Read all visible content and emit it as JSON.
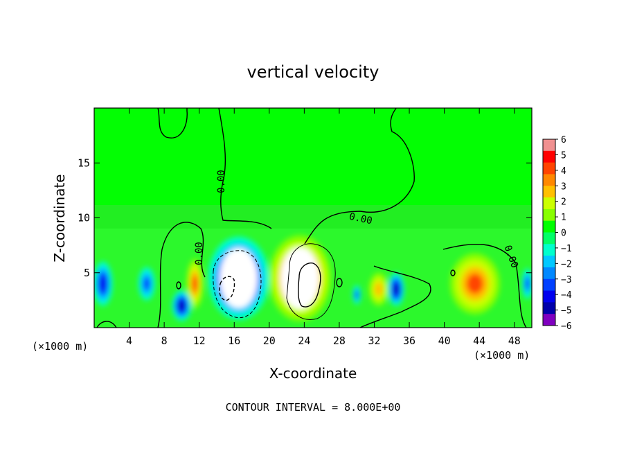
{
  "chart_data": {
    "type": "heatmap",
    "title": "vertical velocity",
    "xlabel": "X-coordinate",
    "ylabel": "Z-coordinate",
    "x_unit_left": "(×1000 m)",
    "x_unit_right": "(×1000 m)",
    "xlim": [
      0,
      50
    ],
    "ylim": [
      0,
      20
    ],
    "x_ticks": [
      4,
      8,
      12,
      16,
      20,
      24,
      28,
      32,
      36,
      40,
      44,
      48
    ],
    "y_ticks": [
      5,
      10,
      15
    ],
    "footer": "CONTOUR INTERVAL = 8.000E+00",
    "contour_labels": [
      "0.00",
      "0.00",
      "0.00",
      "0.00"
    ],
    "colorbar": {
      "labels": [
        "6",
        "5",
        "4",
        "3",
        "2",
        "1",
        "0",
        "−1",
        "−2",
        "−3",
        "−4",
        "−5",
        "−6"
      ],
      "range": [
        -6,
        6
      ],
      "colors": [
        "#f09090",
        "#ff0000",
        "#ff4400",
        "#ff8800",
        "#ffc000",
        "#ccff00",
        "#88ff00",
        "#00ff00",
        "#00ff66",
        "#00ffcc",
        "#00c8ff",
        "#0088ff",
        "#0040ff",
        "#0000ee",
        "#0000aa",
        "#8000c0"
      ]
    },
    "features": [
      {
        "name": "updraft-core",
        "x": 23.5,
        "z": 4.5,
        "value": 6
      },
      {
        "name": "downdraft-core",
        "x": 16.5,
        "z": 4.5,
        "value": -6
      },
      {
        "name": "updraft-cell",
        "x": 11.5,
        "z": 4.0,
        "value": 4
      },
      {
        "name": "downdraft-cell",
        "x": 10.0,
        "z": 2.0,
        "value": -5
      },
      {
        "name": "downdraft-left",
        "x": 1.0,
        "z": 4.0,
        "value": -4
      },
      {
        "name": "downdraft-cell-2",
        "x": 6.0,
        "z": 4.0,
        "value": -3
      },
      {
        "name": "downdraft-cell-3",
        "x": 34.5,
        "z": 3.5,
        "value": -5
      },
      {
        "name": "downdraft-cell-4",
        "x": 30.0,
        "z": 3.0,
        "value": -3
      },
      {
        "name": "updraft-right",
        "x": 43.5,
        "z": 4.0,
        "value": 4
      },
      {
        "name": "updraft-mid",
        "x": 32.5,
        "z": 3.5,
        "value": 2.5
      },
      {
        "name": "downdraft-right-edge",
        "x": 49.5,
        "z": 4.0,
        "value": -3
      }
    ]
  }
}
